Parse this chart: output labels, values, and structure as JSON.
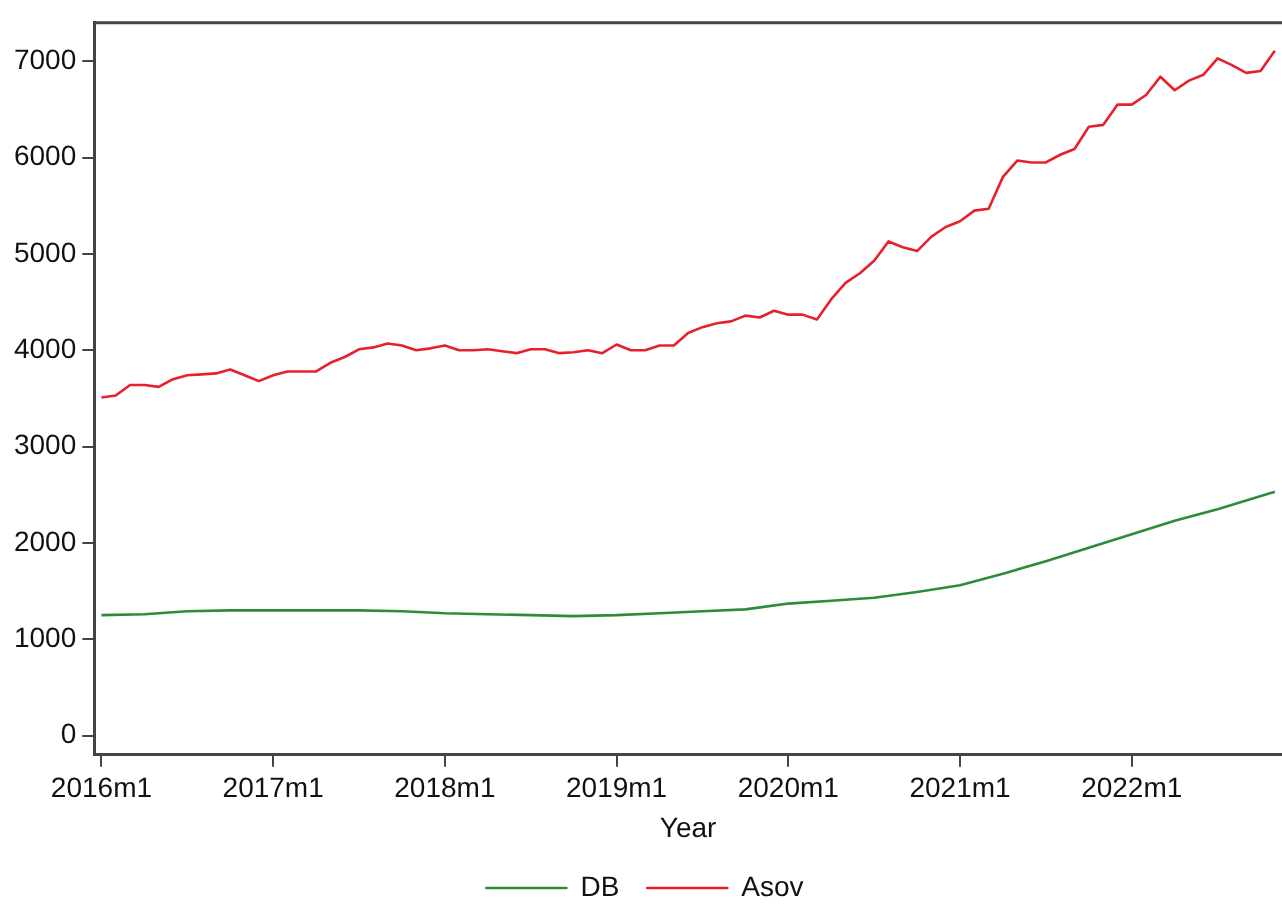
{
  "chart_data": {
    "type": "line",
    "xlabel": "Year",
    "categories": [
      "2016m1",
      null,
      null,
      null,
      null,
      null,
      null,
      null,
      null,
      null,
      null,
      null,
      "2017m1",
      null,
      null,
      null,
      null,
      null,
      null,
      null,
      null,
      null,
      null,
      null,
      "2018m1",
      null,
      null,
      null,
      null,
      null,
      null,
      null,
      null,
      null,
      null,
      null,
      "2019m1",
      null,
      null,
      null,
      null,
      null,
      null,
      null,
      null,
      null,
      null,
      null,
      "2020m1",
      null,
      null,
      null,
      null,
      null,
      null,
      null,
      null,
      null,
      null,
      null,
      "2021m1",
      null,
      null,
      null,
      null,
      null,
      null,
      null,
      null,
      null,
      null,
      null,
      "2022m1",
      null,
      null,
      null,
      null,
      null,
      null,
      null,
      null,
      null,
      null
    ],
    "ylim": [
      -200,
      7400
    ],
    "yticks": [
      0,
      1000,
      2000,
      3000,
      4000,
      5000,
      6000,
      7000
    ],
    "grid": false,
    "legend": "bottom",
    "marker": "none",
    "line_style": "solid",
    "series": [
      {
        "name": "DB",
        "color": "#2e8b3a",
        "values": [
          1250,
          null,
          null,
          1260,
          null,
          null,
          1290,
          null,
          null,
          1300,
          null,
          null,
          1300,
          null,
          null,
          1300,
          null,
          null,
          1300,
          null,
          null,
          1290,
          null,
          null,
          1270,
          null,
          null,
          1260,
          null,
          null,
          1250,
          null,
          null,
          1240,
          null,
          null,
          1250,
          null,
          null,
          1270,
          null,
          null,
          1290,
          null,
          null,
          1310,
          null,
          null,
          1370,
          null,
          null,
          1400,
          null,
          null,
          1430,
          null,
          null,
          1490,
          null,
          null,
          1560,
          null,
          null,
          1680,
          null,
          null,
          1810,
          null,
          null,
          1950,
          null,
          null,
          2090,
          null,
          null,
          2230,
          null,
          null,
          2350,
          null,
          null,
          null,
          2530
        ]
      },
      {
        "name": "Asov",
        "color": "#e8202a",
        "values": [
          3510,
          3530,
          3640,
          3640,
          3620,
          3700,
          3740,
          3750,
          3760,
          3800,
          3740,
          3680,
          3740,
          3780,
          3780,
          3780,
          3870,
          3930,
          4010,
          4030,
          4070,
          4050,
          4000,
          4020,
          4050,
          4000,
          4000,
          4010,
          3990,
          3970,
          4010,
          4010,
          3970,
          3980,
          4000,
          3970,
          4060,
          4000,
          4000,
          4050,
          4050,
          4180,
          4240,
          4280,
          4300,
          4360,
          4340,
          4410,
          4370,
          4370,
          4320,
          4530,
          4700,
          4800,
          4930,
          5130,
          5070,
          5030,
          5180,
          5280,
          5340,
          5450,
          5470,
          5800,
          5970,
          5950,
          5950,
          6030,
          6090,
          6320,
          6340,
          6550,
          6550,
          6650,
          6840,
          6700,
          6800,
          6860,
          7030,
          6960,
          6880,
          6900,
          7110
        ]
      }
    ]
  }
}
